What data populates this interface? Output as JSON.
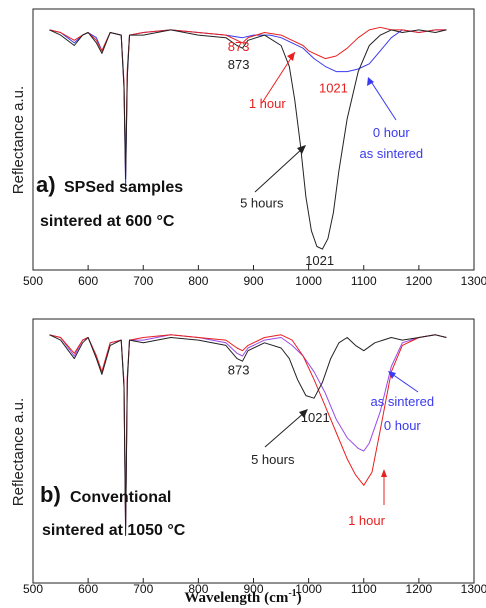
{
  "chart_data": [
    {
      "type": "line",
      "panel_letter": "a)",
      "panel_title": "SPSed samples",
      "panel_subtitle": "sintered at 600 °C",
      "ylabel": "Reflectance a.u.",
      "xlim": [
        500,
        1300
      ],
      "ylim": [
        0,
        100
      ],
      "xticks": [
        "500",
        "600",
        "700",
        "800",
        "900",
        "1000",
        "1100",
        "1200",
        "1300"
      ],
      "series": [
        {
          "name": "0 hour as sintered",
          "color": "#3a3aee",
          "x": [
            530,
            550,
            575,
            590,
            600,
            615,
            625,
            640,
            660,
            665,
            668,
            671,
            675,
            700,
            750,
            800,
            850,
            880,
            900,
            930,
            950,
            970,
            990,
            1010,
            1030,
            1050,
            1070,
            1090,
            1110,
            1130,
            1150,
            1170,
            1200,
            1230,
            1250
          ],
          "y": [
            92,
            91,
            87,
            90,
            91,
            89,
            84,
            91,
            90,
            70,
            32,
            75,
            90,
            91,
            92,
            91,
            90,
            89,
            90,
            90,
            89,
            87,
            85,
            81,
            78,
            76,
            76,
            77,
            79,
            84,
            89,
            92,
            91,
            92,
            92
          ]
        },
        {
          "name": "1 hour",
          "color": "#e82020",
          "x": [
            530,
            550,
            575,
            590,
            600,
            615,
            625,
            640,
            660,
            665,
            668,
            671,
            675,
            700,
            750,
            800,
            850,
            870,
            880,
            890,
            920,
            950,
            970,
            990,
            1000,
            1010,
            1020,
            1030,
            1050,
            1070,
            1090,
            1110,
            1130,
            1150,
            1170,
            1200,
            1230,
            1250
          ],
          "y": [
            92,
            91,
            88,
            90,
            91,
            88,
            84,
            91,
            90,
            72,
            38,
            77,
            90,
            91,
            92,
            91,
            90,
            88,
            87,
            89,
            91,
            90,
            88,
            86,
            84,
            83,
            82,
            81,
            82,
            85,
            89,
            92,
            93,
            92,
            92,
            91,
            92,
            92
          ]
        },
        {
          "name": "5 hours",
          "color": "#222222",
          "x": [
            530,
            550,
            575,
            590,
            600,
            615,
            625,
            640,
            660,
            665,
            668,
            671,
            675,
            700,
            750,
            800,
            850,
            870,
            880,
            890,
            920,
            950,
            965,
            975,
            985,
            995,
            1005,
            1015,
            1025,
            1035,
            1045,
            1055,
            1070,
            1090,
            1110,
            1130,
            1150,
            1170,
            1200,
            1230,
            1250
          ],
          "y": [
            92,
            90,
            86,
            90,
            91,
            87,
            83,
            91,
            90,
            70,
            35,
            74,
            90,
            90,
            92,
            90,
            89,
            86,
            85,
            88,
            90,
            86,
            78,
            65,
            48,
            28,
            15,
            9,
            8,
            12,
            22,
            38,
            58,
            76,
            86,
            90,
            92,
            91,
            92,
            91,
            92
          ]
        }
      ],
      "annotations": [
        {
          "text": "873",
          "color": "#e82020",
          "x": 873,
          "y": 84
        },
        {
          "text": "873",
          "color": "#222222",
          "x": 873,
          "y": 77
        },
        {
          "text": "1 hour",
          "color": "#e82020",
          "x": 925,
          "y": 62
        },
        {
          "text": "1021",
          "color": "#e82020",
          "x": 1045,
          "y": 68
        },
        {
          "text": "0 hour",
          "color": "#3a3aee",
          "x": 1150,
          "y": 51
        },
        {
          "text": "as sintered",
          "color": "#3a3aee",
          "x": 1150,
          "y": 43
        },
        {
          "text": "5 hours",
          "color": "#222222",
          "x": 915,
          "y": 24
        },
        {
          "text": "1021",
          "color": "#222222",
          "x": 1020,
          "y": 2
        }
      ]
    },
    {
      "type": "line",
      "panel_letter": "b)",
      "panel_title": "Conventional",
      "panel_subtitle": "sintered at 1050 °C",
      "ylabel": "Reflectance a.u.",
      "xlabel": "Wavelength",
      "xlabel_unit": "(cm",
      "xlabel_exp": "-1",
      "xlabel_close": ")",
      "xlim": [
        500,
        1300
      ],
      "ylim": [
        0,
        100
      ],
      "xticks": [
        "500",
        "600",
        "700",
        "800",
        "900",
        "1000",
        "1100",
        "1200",
        "1300"
      ],
      "series": [
        {
          "name": "as sintered 0 hour",
          "color": "#9a4ae8",
          "x": [
            530,
            550,
            575,
            590,
            600,
            615,
            625,
            640,
            660,
            665,
            668,
            671,
            675,
            700,
            750,
            800,
            850,
            870,
            880,
            890,
            920,
            950,
            970,
            990,
            1010,
            1030,
            1050,
            1070,
            1090,
            1100,
            1110,
            1130,
            1150,
            1170,
            1200,
            1230,
            1250
          ],
          "y": [
            94,
            93,
            86,
            92,
            93,
            86,
            80,
            91,
            92,
            75,
            20,
            78,
            92,
            92,
            94,
            93,
            91,
            87,
            86,
            89,
            92,
            93,
            90,
            86,
            80,
            72,
            62,
            55,
            51,
            50,
            53,
            65,
            82,
            91,
            93,
            94,
            93
          ]
        },
        {
          "name": "1 hour",
          "color": "#e82020",
          "x": [
            530,
            550,
            575,
            590,
            600,
            615,
            625,
            640,
            660,
            665,
            668,
            671,
            675,
            700,
            750,
            800,
            850,
            870,
            880,
            890,
            920,
            950,
            970,
            990,
            1010,
            1030,
            1050,
            1070,
            1085,
            1100,
            1115,
            1130,
            1150,
            1170,
            1200,
            1230,
            1250
          ],
          "y": [
            94,
            93,
            87,
            92,
            93,
            86,
            80,
            91,
            92,
            76,
            22,
            78,
            92,
            93,
            94,
            93,
            92,
            89,
            88,
            90,
            93,
            94,
            92,
            86,
            77,
            67,
            57,
            47,
            41,
            37,
            42,
            58,
            80,
            90,
            93,
            94,
            93
          ]
        },
        {
          "name": "5 hours",
          "color": "#222222",
          "x": [
            530,
            550,
            575,
            590,
            600,
            615,
            625,
            640,
            660,
            665,
            668,
            671,
            675,
            700,
            750,
            800,
            850,
            870,
            880,
            890,
            920,
            950,
            965,
            980,
            995,
            1010,
            1025,
            1040,
            1055,
            1070,
            1085,
            1100,
            1120,
            1150,
            1170,
            1200,
            1230,
            1250
          ],
          "y": [
            94,
            92,
            85,
            91,
            93,
            85,
            79,
            90,
            92,
            74,
            18,
            76,
            92,
            91,
            93,
            92,
            90,
            85,
            84,
            88,
            91,
            89,
            85,
            77,
            71,
            70,
            76,
            85,
            91,
            93,
            90,
            88,
            91,
            93,
            92,
            93,
            94,
            93
          ]
        }
      ],
      "annotations": [
        {
          "text": "873",
          "color": "#222222",
          "x": 873,
          "y": 79
        },
        {
          "text": "1021",
          "color": "#222222",
          "x": 1012,
          "y": 61
        },
        {
          "text": "5 hours",
          "color": "#222222",
          "x": 935,
          "y": 45
        },
        {
          "text": "as sintered",
          "color": "#3a3aee",
          "x": 1170,
          "y": 67
        },
        {
          "text": "0 hour",
          "color": "#3a3aee",
          "x": 1170,
          "y": 58
        },
        {
          "text": "1 hour",
          "color": "#e82020",
          "x": 1105,
          "y": 22
        }
      ]
    }
  ]
}
